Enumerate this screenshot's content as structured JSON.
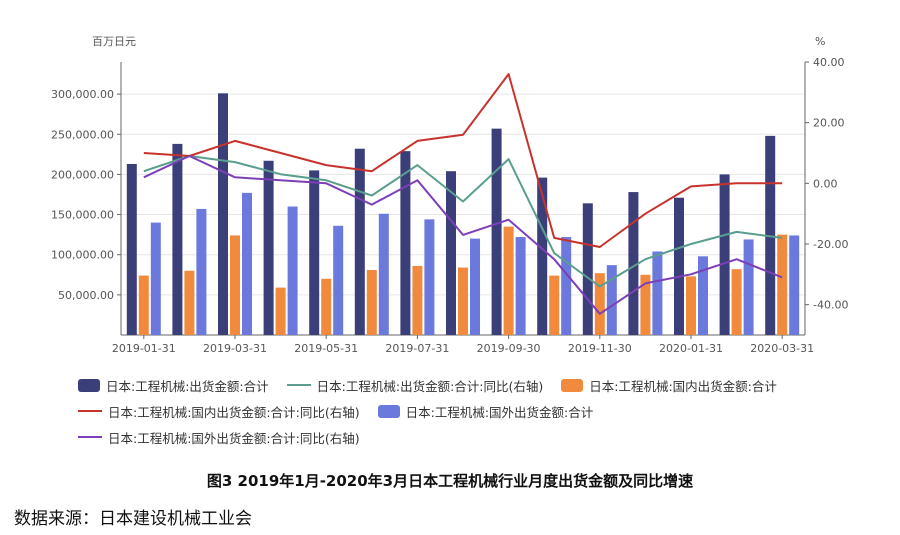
{
  "caption": "图3 2019年1月-2020年3月日本工程机械行业月度出货金额及同比增速",
  "source": "数据来源：日本建设机械工业会",
  "chart_data": {
    "type": "bar",
    "left_axis_unit": "百万日元",
    "right_axis_unit": "%",
    "ylim_left": [
      0,
      340000
    ],
    "ylim_right": [
      -50,
      40
    ],
    "left_ticks": [
      "50,000.00",
      "100,000.00",
      "150,000.00",
      "200,000.00",
      "250,000.00",
      "300,000.00"
    ],
    "left_tick_values": [
      50000,
      100000,
      150000,
      200000,
      250000,
      300000
    ],
    "right_ticks": [
      "-40.00",
      "-20.00",
      "0.00",
      "20.00",
      "40.00"
    ],
    "right_tick_values": [
      -40,
      -20,
      0,
      20,
      40
    ],
    "x_tick_labels": [
      "2019-01-31",
      "2019-03-31",
      "2019-05-31",
      "2019-07-31",
      "2019-09-30",
      "2019-11-30",
      "2020-01-31",
      "2020-03-31"
    ],
    "x_tick_indices": [
      0,
      2,
      4,
      6,
      8,
      10,
      12,
      14
    ],
    "categories": [
      "2019-01-31",
      "2019-02-28",
      "2019-03-31",
      "2019-04-30",
      "2019-05-31",
      "2019-06-30",
      "2019-07-31",
      "2019-08-31",
      "2019-09-30",
      "2019-10-31",
      "2019-11-30",
      "2019-12-31",
      "2020-01-31",
      "2020-02-29",
      "2020-03-31"
    ],
    "bar_series": [
      {
        "name": "日本:工程机械:出货金额:合计",
        "color": "#3b3f79",
        "values": [
          213000,
          238000,
          301000,
          217000,
          205000,
          232000,
          229000,
          204000,
          257000,
          196000,
          164000,
          178000,
          171000,
          200000,
          248000
        ]
      },
      {
        "name": "日本:工程机械:国内出货金额:合计",
        "color": "#f28a3d",
        "values": [
          74000,
          80000,
          124000,
          59000,
          70000,
          81000,
          86000,
          84000,
          135000,
          74000,
          77000,
          75000,
          73000,
          82000,
          125000
        ]
      },
      {
        "name": "日本:工程机械:国外出货金额:合计",
        "color": "#6b79dc",
        "values": [
          140000,
          157000,
          177000,
          160000,
          136000,
          151000,
          144000,
          120000,
          122000,
          122000,
          87000,
          104000,
          98000,
          119000,
          124000
        ]
      }
    ],
    "line_series": [
      {
        "name": "日本:工程机械:出货金额:合计:同比(右轴)",
        "color": "#5a9e8f",
        "values": [
          4,
          9,
          7,
          3,
          1,
          -4,
          6,
          -6,
          8,
          -23,
          -34,
          -25,
          -20,
          -16,
          -18
        ]
      },
      {
        "name": "日本:工程机械:国内出货金额:合计:同比(右轴)",
        "color": "#c8322c",
        "values": [
          10,
          9,
          14,
          10,
          6,
          4,
          14,
          16,
          36,
          -18,
          -21,
          -10,
          -1,
          0,
          0
        ]
      },
      {
        "name": "日本:工程机械:国外出货金额:合计:同比(右轴)",
        "color": "#7d3fb8",
        "values": [
          2,
          9,
          2,
          1,
          0,
          -7,
          1,
          -17,
          -12,
          -25,
          -43,
          -33,
          -30,
          -25,
          -31
        ]
      }
    ]
  },
  "legend": [
    [
      {
        "key": "bar0",
        "kind": "bar",
        "label": "日本:工程机械:出货金额:合计",
        "color": "#3b3f79"
      },
      {
        "key": "line0",
        "kind": "line",
        "label": "日本:工程机械:出货金额:合计:同比(右轴)",
        "color": "#5a9e8f"
      },
      {
        "key": "bar1",
        "kind": "bar",
        "label": "日本:工程机械:国内出货金额:合计",
        "color": "#f28a3d"
      }
    ],
    [
      {
        "key": "line1",
        "kind": "line",
        "label": "日本:工程机械:国内出货金额:合计:同比(右轴)",
        "color": "#c8322c"
      },
      {
        "key": "bar2",
        "kind": "bar",
        "label": "日本:工程机械:国外出货金额:合计",
        "color": "#6b79dc"
      }
    ],
    [
      {
        "key": "line2",
        "kind": "line",
        "label": "日本:工程机械:国外出货金额:合计:同比(右轴)",
        "color": "#7d3fb8"
      }
    ]
  ]
}
